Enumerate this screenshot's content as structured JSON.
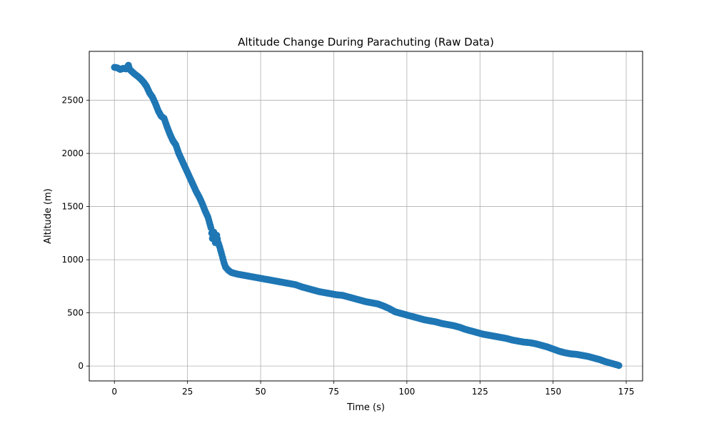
{
  "chart_data": {
    "type": "scatter",
    "title": "Altitude Change During Parachuting (Raw Data)",
    "xlabel": "Time (s)",
    "ylabel": "Altitude (m)",
    "xlim": [
      -8.6,
      180.6
    ],
    "ylim": [
      -140,
      2960
    ],
    "xticks": [
      0,
      25,
      50,
      75,
      100,
      125,
      150,
      175
    ],
    "yticks": [
      0,
      500,
      1000,
      1500,
      2000,
      2500
    ],
    "grid": true,
    "marker_color": "#1f77b4",
    "series": [
      {
        "points": [
          [
            0,
            2810
          ],
          [
            1,
            2805
          ],
          [
            2,
            2790
          ],
          [
            3,
            2800
          ],
          [
            4,
            2795
          ],
          [
            4.8,
            2830
          ],
          [
            5.2,
            2790
          ],
          [
            6,
            2770
          ],
          [
            7,
            2745
          ],
          [
            8,
            2725
          ],
          [
            9,
            2700
          ],
          [
            10,
            2670
          ],
          [
            11,
            2630
          ],
          [
            12,
            2570
          ],
          [
            13,
            2530
          ],
          [
            14,
            2470
          ],
          [
            15,
            2400
          ],
          [
            16,
            2350
          ],
          [
            17,
            2330
          ],
          [
            18,
            2250
          ],
          [
            19,
            2180
          ],
          [
            20,
            2120
          ],
          [
            21,
            2080
          ],
          [
            22,
            2000
          ],
          [
            23,
            1940
          ],
          [
            24,
            1880
          ],
          [
            25,
            1820
          ],
          [
            26,
            1760
          ],
          [
            27,
            1700
          ],
          [
            28,
            1640
          ],
          [
            29,
            1590
          ],
          [
            30,
            1530
          ],
          [
            31,
            1460
          ],
          [
            32,
            1400
          ],
          [
            33,
            1300
          ],
          [
            33.5,
            1200
          ],
          [
            34,
            1260
          ],
          [
            34.5,
            1160
          ],
          [
            35,
            1230
          ],
          [
            35.5,
            1160
          ],
          [
            36,
            1120
          ],
          [
            36.5,
            1070
          ],
          [
            37,
            1020
          ],
          [
            37.5,
            970
          ],
          [
            38,
            930
          ],
          [
            39,
            900
          ],
          [
            40,
            880
          ],
          [
            42,
            865
          ],
          [
            44,
            855
          ],
          [
            46,
            845
          ],
          [
            48,
            835
          ],
          [
            50,
            825
          ],
          [
            52,
            815
          ],
          [
            54,
            805
          ],
          [
            56,
            795
          ],
          [
            58,
            785
          ],
          [
            60,
            775
          ],
          [
            62,
            765
          ],
          [
            64,
            745
          ],
          [
            66,
            730
          ],
          [
            68,
            715
          ],
          [
            70,
            700
          ],
          [
            72,
            690
          ],
          [
            74,
            680
          ],
          [
            76,
            670
          ],
          [
            78,
            665
          ],
          [
            80,
            650
          ],
          [
            82,
            635
          ],
          [
            84,
            620
          ],
          [
            86,
            605
          ],
          [
            88,
            595
          ],
          [
            90,
            585
          ],
          [
            92,
            565
          ],
          [
            94,
            540
          ],
          [
            96,
            510
          ],
          [
            98,
            495
          ],
          [
            100,
            480
          ],
          [
            102,
            465
          ],
          [
            104,
            450
          ],
          [
            106,
            435
          ],
          [
            108,
            425
          ],
          [
            110,
            415
          ],
          [
            112,
            400
          ],
          [
            114,
            390
          ],
          [
            116,
            380
          ],
          [
            118,
            365
          ],
          [
            120,
            345
          ],
          [
            122,
            330
          ],
          [
            124,
            315
          ],
          [
            126,
            300
          ],
          [
            128,
            290
          ],
          [
            130,
            280
          ],
          [
            132,
            270
          ],
          [
            134,
            260
          ],
          [
            136,
            245
          ],
          [
            138,
            235
          ],
          [
            140,
            225
          ],
          [
            142,
            220
          ],
          [
            144,
            210
          ],
          [
            146,
            195
          ],
          [
            148,
            180
          ],
          [
            150,
            160
          ],
          [
            152,
            140
          ],
          [
            154,
            125
          ],
          [
            156,
            115
          ],
          [
            158,
            110
          ],
          [
            160,
            100
          ],
          [
            162,
            90
          ],
          [
            164,
            75
          ],
          [
            166,
            60
          ],
          [
            168,
            40
          ],
          [
            170,
            25
          ],
          [
            172,
            10
          ],
          [
            172.5,
            5
          ]
        ]
      }
    ]
  }
}
